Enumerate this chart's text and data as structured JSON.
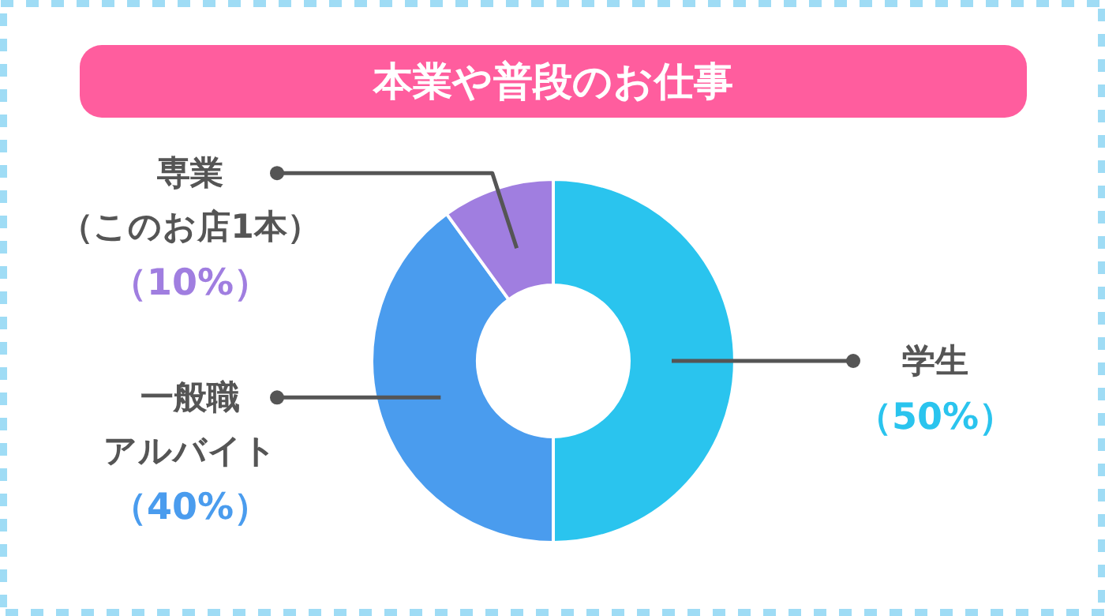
{
  "chart_data": {
    "type": "donut",
    "title": "本業や普段のお仕事",
    "categories": [
      "学生",
      "一般職アルバイト",
      "専業（このお店1本）"
    ],
    "values": [
      50,
      40,
      10
    ],
    "colors": [
      "#2ac4ee",
      "#4a9cee",
      "#a07ee0"
    ],
    "value_labels": [
      "（50%）",
      "（40%）",
      "（10%）"
    ]
  }
}
